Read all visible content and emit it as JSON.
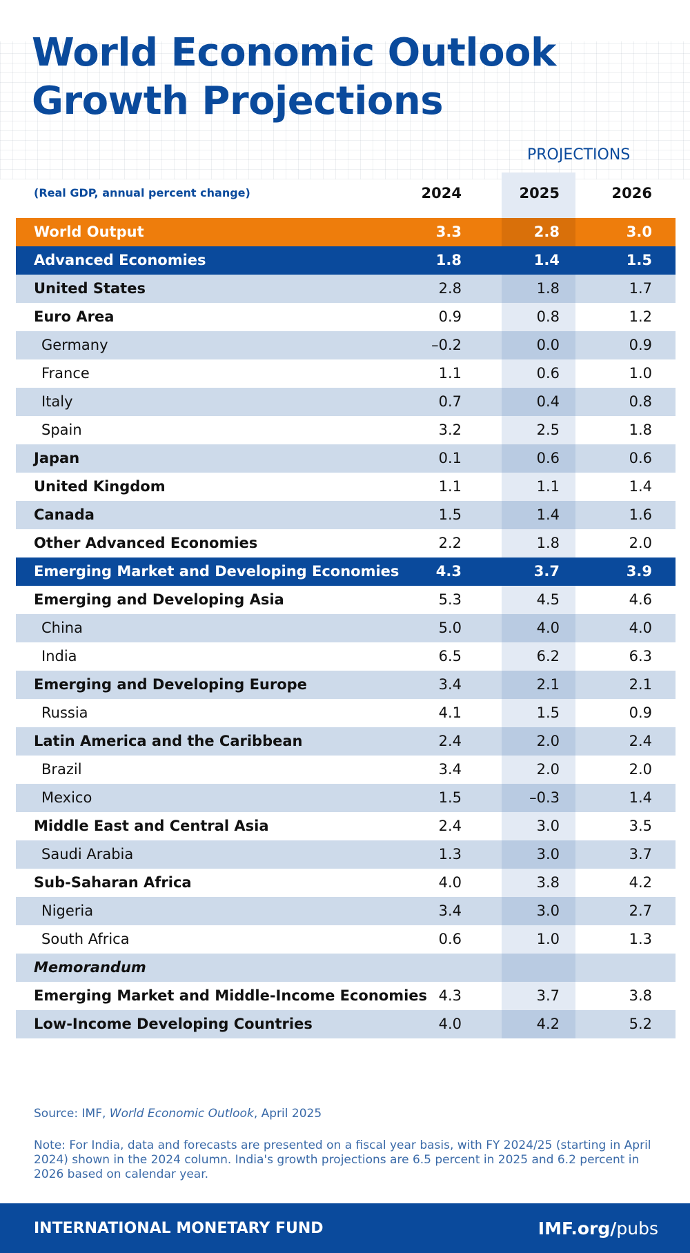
{
  "header": {
    "title_lines": [
      "World Economic Outlook",
      "Growth Projections"
    ]
  },
  "table": {
    "projections_label": "PROJECTIONS",
    "unit_note": "(Real GDP, annual percent change)",
    "columns": [
      "2024",
      "2025",
      "2026"
    ],
    "rows": [
      {
        "label": "World Output",
        "values": [
          "3.3",
          "2.8",
          "3.0"
        ]
      },
      {
        "label": "Advanced Economies",
        "values": [
          "1.8",
          "1.4",
          "1.5"
        ]
      },
      {
        "label": "United States",
        "values": [
          "2.8",
          "1.8",
          "1.7"
        ]
      },
      {
        "label": "Euro Area",
        "values": [
          "0.9",
          "0.8",
          "1.2"
        ]
      },
      {
        "label": "Germany",
        "values": [
          "–0.2",
          "0.0",
          "0.9"
        ]
      },
      {
        "label": "France",
        "values": [
          "1.1",
          "0.6",
          "1.0"
        ]
      },
      {
        "label": "Italy",
        "values": [
          "0.7",
          "0.4",
          "0.8"
        ]
      },
      {
        "label": "Spain",
        "values": [
          "3.2",
          "2.5",
          "1.8"
        ]
      },
      {
        "label": "Japan",
        "values": [
          "0.1",
          "0.6",
          "0.6"
        ]
      },
      {
        "label": "United Kingdom",
        "values": [
          "1.1",
          "1.1",
          "1.4"
        ]
      },
      {
        "label": "Canada",
        "values": [
          "1.5",
          "1.4",
          "1.6"
        ]
      },
      {
        "label": "Other Advanced Economies",
        "values": [
          "2.2",
          "1.8",
          "2.0"
        ]
      },
      {
        "label": "Emerging Market and Developing Economies",
        "values": [
          "4.3",
          "3.7",
          "3.9"
        ]
      },
      {
        "label": "Emerging and Developing Asia",
        "values": [
          "5.3",
          "4.5",
          "4.6"
        ]
      },
      {
        "label": "China",
        "values": [
          "5.0",
          "4.0",
          "4.0"
        ]
      },
      {
        "label": "India",
        "values": [
          "6.5",
          "6.2",
          "6.3"
        ]
      },
      {
        "label": "Emerging and Developing Europe",
        "values": [
          "3.4",
          "2.1",
          "2.1"
        ]
      },
      {
        "label": "Russia",
        "values": [
          "4.1",
          "1.5",
          "0.9"
        ]
      },
      {
        "label": "Latin America and the Caribbean",
        "values": [
          "2.4",
          "2.0",
          "2.4"
        ]
      },
      {
        "label": "Brazil",
        "values": [
          "3.4",
          "2.0",
          "2.0"
        ]
      },
      {
        "label": "Mexico",
        "values": [
          "1.5",
          "–0.3",
          "1.4"
        ]
      },
      {
        "label": "Middle East and Central Asia",
        "values": [
          "2.4",
          "3.0",
          "3.5"
        ]
      },
      {
        "label": "Saudi Arabia",
        "values": [
          "1.3",
          "3.0",
          "3.7"
        ]
      },
      {
        "label": "Sub-Saharan Africa",
        "values": [
          "4.0",
          "3.8",
          "4.2"
        ]
      },
      {
        "label": "Nigeria",
        "values": [
          "3.4",
          "3.0",
          "2.7"
        ]
      },
      {
        "label": "South Africa",
        "values": [
          "0.6",
          "1.0",
          "1.3"
        ]
      },
      {
        "label": "Memorandum",
        "values": []
      },
      {
        "label": "Emerging Market and Middle-Income Economies",
        "values": [
          "4.3",
          "3.7",
          "3.8"
        ]
      },
      {
        "label": "Low-Income Developing Countries",
        "values": [
          "4.0",
          "4.2",
          "5.2"
        ]
      }
    ]
  },
  "source": {
    "prefix": "Source: IMF, ",
    "publication": "World Economic Outlook",
    "date": ", April 2025"
  },
  "note": "Note: For India, data and forecasts are presented on a fiscal year basis, with FY 2024/25 (starting in April 2024) shown in the 2024 column. India's growth projections are 6.5 percent in 2025 and 6.2 percent in 2026 based on calendar year.",
  "footer": {
    "org": "INTERNATIONAL MONETARY FUND",
    "link_bold": "IMF.org/",
    "link_light": "pubs"
  }
}
